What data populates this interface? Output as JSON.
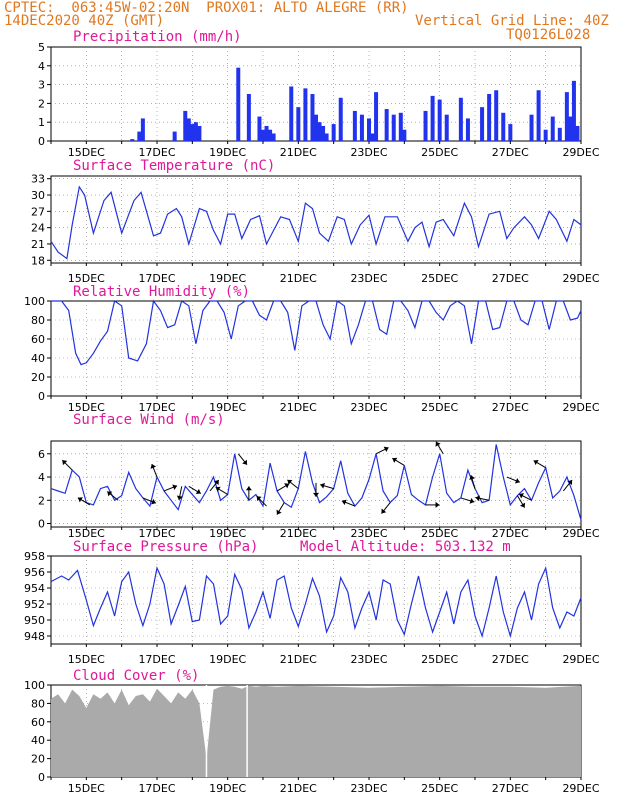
{
  "header": {
    "line1_left": "CPTEC:  063:45W-02:20N  PROX01: ALTO ALEGRE (RR)",
    "line2_left": "14DEC2020 40Z (GMT)",
    "line2_right": "Vertical Grid Line: 40Z",
    "line3_right": "TQ0126L028"
  },
  "x_tick_labels": [
    "15DEC",
    "17DEC",
    "19DEC",
    "21DEC",
    "23DEC",
    "25DEC",
    "27DEC",
    "29DEC"
  ],
  "colors": {
    "line": "#2233dd",
    "bar": "#2233ee",
    "cloud": "#aaaaaa",
    "title": "#e0189a",
    "header": "#e07820"
  },
  "chart_data": [
    {
      "type": "bar",
      "title": "Precipitation (mm/h)",
      "ylim": [
        0,
        5
      ],
      "y_ticks": [
        "0",
        "1",
        "2",
        "3",
        "4",
        "5"
      ],
      "x_units": "day (0 = 14DEC 00Z)",
      "x": [
        2.3,
        2.5,
        2.6,
        3.5,
        3.8,
        3.9,
        4.0,
        4.1,
        4.2,
        5.3,
        5.6,
        5.9,
        6.0,
        6.1,
        6.2,
        6.3,
        6.8,
        7.0,
        7.2,
        7.4,
        7.5,
        7.6,
        7.7,
        7.8,
        8.0,
        8.2,
        8.6,
        8.8,
        9.0,
        9.1,
        9.2,
        9.5,
        9.7,
        9.9,
        10.0,
        10.6,
        10.8,
        11.0,
        11.2,
        11.6,
        11.8,
        12.2,
        12.4,
        12.6,
        12.8,
        13.0,
        13.6,
        13.8,
        14.0,
        14.2,
        14.4,
        14.6,
        14.7,
        14.8,
        14.9
      ],
      "values": [
        0.1,
        0.5,
        1.2,
        0.5,
        1.6,
        1.2,
        0.9,
        1.0,
        0.8,
        3.9,
        2.5,
        1.3,
        0.6,
        0.8,
        0.6,
        0.4,
        2.9,
        1.8,
        2.8,
        2.5,
        1.4,
        1.0,
        0.8,
        0.4,
        0.9,
        2.3,
        1.6,
        1.4,
        1.2,
        0.4,
        2.6,
        1.7,
        1.4,
        1.5,
        0.6,
        1.6,
        2.4,
        2.2,
        1.4,
        2.3,
        1.2,
        1.8,
        2.5,
        2.7,
        1.5,
        0.9,
        1.4,
        2.7,
        0.6,
        1.3,
        0.7,
        2.6,
        1.3,
        3.2,
        0.8
      ]
    },
    {
      "type": "line",
      "title": "Surface Temperature (nC)",
      "ylim": [
        17.5,
        33.5
      ],
      "y_ticks": [
        "18",
        "21",
        "24",
        "27",
        "30",
        "33"
      ],
      "x_units": "day (0 = 14DEC 00Z)",
      "x": [
        0.0,
        0.2,
        0.45,
        0.6,
        0.8,
        0.95,
        1.2,
        1.5,
        1.7,
        2.0,
        2.35,
        2.55,
        2.9,
        3.1,
        3.3,
        3.55,
        3.7,
        3.9,
        4.2,
        4.4,
        4.6,
        4.8,
        5.0,
        5.2,
        5.4,
        5.65,
        5.9,
        6.1,
        6.3,
        6.5,
        6.75,
        7.0,
        7.2,
        7.4,
        7.6,
        7.85,
        8.1,
        8.3,
        8.5,
        8.75,
        9.0,
        9.2,
        9.45,
        9.8,
        10.1,
        10.3,
        10.5,
        10.7,
        10.9,
        11.1,
        11.4,
        11.7,
        11.9,
        12.1,
        12.4,
        12.7,
        12.9,
        13.1,
        13.4,
        13.6,
        13.8,
        14.1,
        14.3,
        14.6,
        14.8,
        15.0
      ],
      "values": [
        21.5,
        19.5,
        18.3,
        24.5,
        31.5,
        30.0,
        23.0,
        29.0,
        30.5,
        23.0,
        29.0,
        30.5,
        22.5,
        23.0,
        26.5,
        27.5,
        26.0,
        21.0,
        27.5,
        27.0,
        23.5,
        21.0,
        26.5,
        26.5,
        22.0,
        25.5,
        26.2,
        21.0,
        23.5,
        26.0,
        25.5,
        21.5,
        28.5,
        27.5,
        23.0,
        21.5,
        26.0,
        25.5,
        21.0,
        24.5,
        26.3,
        21.0,
        26.0,
        26.0,
        21.5,
        24.0,
        25.0,
        20.5,
        25.0,
        25.5,
        22.5,
        28.5,
        26.0,
        20.5,
        26.5,
        27.0,
        22.0,
        24.0,
        26.0,
        24.5,
        22.0,
        27.0,
        25.5,
        21.5,
        25.5,
        24.5
      ]
    },
    {
      "type": "line",
      "title": "Relative Humidity (%)",
      "ylim": [
        0,
        100
      ],
      "y_ticks": [
        "0",
        "20",
        "40",
        "60",
        "80",
        "100"
      ],
      "x_units": "day (0 = 14DEC 00Z)",
      "x": [
        0.0,
        0.3,
        0.5,
        0.7,
        0.85,
        1.0,
        1.2,
        1.4,
        1.6,
        1.8,
        2.0,
        2.2,
        2.45,
        2.7,
        2.9,
        3.1,
        3.3,
        3.5,
        3.7,
        3.9,
        4.1,
        4.3,
        4.5,
        4.7,
        4.9,
        5.1,
        5.3,
        5.5,
        5.7,
        5.9,
        6.1,
        6.3,
        6.5,
        6.7,
        6.9,
        7.1,
        7.3,
        7.5,
        7.7,
        7.9,
        8.1,
        8.3,
        8.5,
        8.7,
        8.9,
        9.1,
        9.3,
        9.5,
        9.7,
        9.9,
        10.1,
        10.3,
        10.5,
        10.7,
        10.9,
        11.1,
        11.3,
        11.5,
        11.7,
        11.9,
        12.1,
        12.3,
        12.5,
        12.7,
        12.9,
        13.1,
        13.3,
        13.5,
        13.7,
        13.9,
        14.1,
        14.3,
        14.5,
        14.7,
        14.9,
        15.0
      ],
      "values": [
        100,
        100,
        90,
        45,
        33,
        35,
        45,
        58,
        68,
        100,
        95,
        40,
        37,
        55,
        100,
        90,
        72,
        75,
        100,
        95,
        55,
        90,
        100,
        100,
        88,
        60,
        95,
        100,
        100,
        85,
        80,
        100,
        100,
        88,
        48,
        95,
        100,
        100,
        75,
        60,
        100,
        95,
        55,
        75,
        100,
        100,
        70,
        65,
        100,
        100,
        90,
        72,
        100,
        100,
        88,
        80,
        95,
        100,
        95,
        55,
        100,
        100,
        70,
        72,
        100,
        100,
        80,
        75,
        100,
        100,
        70,
        100,
        100,
        80,
        82,
        90
      ]
    },
    {
      "type": "line",
      "title": "Surface Wind (m/s)",
      "ylim": [
        -0.3,
        7.1
      ],
      "y_ticks": [
        "0",
        "2",
        "4",
        "6"
      ],
      "x_units": "day (0 = 14DEC 00Z)",
      "x": [
        0.0,
        0.2,
        0.4,
        0.6,
        0.8,
        1.0,
        1.2,
        1.4,
        1.6,
        1.8,
        2.0,
        2.2,
        2.4,
        2.6,
        2.8,
        3.0,
        3.2,
        3.4,
        3.6,
        3.8,
        4.0,
        4.2,
        4.4,
        4.6,
        4.8,
        5.0,
        5.2,
        5.4,
        5.6,
        5.8,
        6.0,
        6.2,
        6.4,
        6.6,
        6.8,
        7.0,
        7.2,
        7.4,
        7.6,
        7.8,
        8.0,
        8.2,
        8.4,
        8.6,
        8.8,
        9.0,
        9.2,
        9.4,
        9.6,
        9.8,
        10.0,
        10.2,
        10.4,
        10.6,
        10.8,
        11.0,
        11.2,
        11.4,
        11.6,
        11.8,
        12.0,
        12.2,
        12.4,
        12.6,
        12.8,
        13.0,
        13.2,
        13.4,
        13.6,
        13.8,
        14.0,
        14.2,
        14.4,
        14.6,
        14.8,
        15.0
      ],
      "values": [
        3.0,
        2.8,
        2.6,
        4.6,
        4.0,
        1.8,
        1.6,
        3.0,
        3.2,
        2.0,
        2.4,
        4.4,
        3.0,
        2.2,
        1.5,
        4.0,
        2.8,
        2.0,
        1.2,
        3.2,
        2.5,
        1.8,
        2.8,
        4.0,
        2.0,
        2.5,
        6.0,
        3.0,
        2.0,
        2.5,
        1.5,
        5.2,
        2.8,
        1.8,
        1.4,
        3.0,
        6.2,
        3.5,
        1.8,
        2.3,
        3.0,
        5.4,
        2.6,
        1.5,
        2.2,
        3.8,
        6.0,
        2.8,
        1.8,
        2.4,
        5.0,
        2.5,
        2.0,
        1.6,
        4.0,
        6.0,
        2.6,
        1.8,
        2.2,
        4.6,
        3.0,
        1.8,
        2.0,
        6.8,
        4.0,
        1.6,
        2.4,
        3.0,
        2.0,
        3.5,
        4.8,
        2.2,
        2.8,
        4.0,
        2.4,
        0.3
      ],
      "arrows": [
        {
          "x": 0.6,
          "dx": -1,
          "dy": -1
        },
        {
          "x": 1.1,
          "dx": -1,
          "dy": -0.6
        },
        {
          "x": 1.9,
          "dx": -1,
          "dy": -0.8
        },
        {
          "x": 2.6,
          "dx": 1,
          "dy": 0.4
        },
        {
          "x": 3.0,
          "dx": -0.4,
          "dy": -1
        },
        {
          "x": 3.2,
          "dx": 1,
          "dy": -0.4
        },
        {
          "x": 3.7,
          "dx": -0.2,
          "dy": 1
        },
        {
          "x": 3.9,
          "dx": 1,
          "dy": 0.6
        },
        {
          "x": 4.5,
          "dx": 0.8,
          "dy": -1
        },
        {
          "x": 5.0,
          "dx": -1,
          "dy": -0.6
        },
        {
          "x": 5.3,
          "dx": 0.8,
          "dy": 1
        },
        {
          "x": 5.6,
          "dx": 0,
          "dy": -1
        },
        {
          "x": 6.1,
          "dx": -1,
          "dy": -1
        },
        {
          "x": 6.4,
          "dx": 1,
          "dy": -0.6
        },
        {
          "x": 6.6,
          "dx": -0.6,
          "dy": 1
        },
        {
          "x": 7.0,
          "dx": -1,
          "dy": -0.8
        },
        {
          "x": 7.5,
          "dx": 0,
          "dy": 1
        },
        {
          "x": 8.0,
          "dx": -1,
          "dy": -0.3
        },
        {
          "x": 8.6,
          "dx": -1,
          "dy": -0.4
        },
        {
          "x": 9.2,
          "dx": 1,
          "dy": -0.5
        },
        {
          "x": 9.6,
          "dx": -0.8,
          "dy": 1
        },
        {
          "x": 10.0,
          "dx": -1,
          "dy": -0.6
        },
        {
          "x": 10.6,
          "dx": 1,
          "dy": 0
        },
        {
          "x": 11.1,
          "dx": -0.6,
          "dy": -1
        },
        {
          "x": 11.6,
          "dx": 1,
          "dy": 0.3
        },
        {
          "x": 12.0,
          "dx": -0.3,
          "dy": -1
        },
        {
          "x": 12.4,
          "dx": -1,
          "dy": -0.2
        },
        {
          "x": 12.9,
          "dx": 1,
          "dy": 0.4
        },
        {
          "x": 13.2,
          "dx": 0.6,
          "dy": 1
        },
        {
          "x": 13.6,
          "dx": -1,
          "dy": -0.5
        },
        {
          "x": 14.0,
          "dx": -1,
          "dy": -0.6
        },
        {
          "x": 14.5,
          "dx": 0.8,
          "dy": -1
        }
      ]
    },
    {
      "type": "line",
      "title": "Surface Pressure (hPa)",
      "subtitle": "Model Altitude: 503.132 m",
      "ylim": [
        947,
        958
      ],
      "y_ticks": [
        "948",
        "950",
        "952",
        "954",
        "956",
        "958"
      ],
      "x_units": "day (0 = 14DEC 00Z)",
      "x": [
        0.0,
        0.3,
        0.5,
        0.75,
        1.0,
        1.2,
        1.4,
        1.6,
        1.8,
        2.0,
        2.2,
        2.4,
        2.6,
        2.8,
        3.0,
        3.2,
        3.4,
        3.6,
        3.8,
        4.0,
        4.2,
        4.4,
        4.6,
        4.8,
        5.0,
        5.2,
        5.4,
        5.6,
        5.8,
        6.0,
        6.2,
        6.4,
        6.6,
        6.8,
        7.0,
        7.2,
        7.4,
        7.6,
        7.8,
        8.0,
        8.2,
        8.4,
        8.6,
        8.8,
        9.0,
        9.2,
        9.4,
        9.6,
        9.8,
        10.0,
        10.2,
        10.4,
        10.6,
        10.8,
        11.0,
        11.2,
        11.4,
        11.6,
        11.8,
        12.0,
        12.2,
        12.4,
        12.6,
        12.8,
        13.0,
        13.2,
        13.4,
        13.6,
        13.8,
        14.0,
        14.2,
        14.4,
        14.6,
        14.8,
        15.0
      ],
      "values": [
        954.8,
        955.5,
        955.0,
        956.2,
        952.5,
        949.3,
        951.5,
        953.5,
        950.5,
        954.8,
        956.0,
        952.0,
        949.3,
        952.0,
        956.5,
        954.5,
        949.5,
        951.8,
        954.2,
        949.8,
        950.0,
        955.5,
        954.5,
        949.5,
        950.5,
        955.7,
        953.8,
        949.0,
        951.0,
        953.5,
        950.2,
        955.0,
        955.5,
        951.5,
        949.2,
        952.0,
        955.2,
        953.0,
        948.5,
        950.5,
        955.3,
        953.5,
        949.0,
        951.5,
        953.5,
        950.0,
        955.0,
        954.5,
        950.0,
        948.2,
        952.0,
        955.5,
        951.5,
        948.5,
        951.0,
        953.5,
        949.5,
        953.5,
        955.0,
        950.5,
        948.0,
        951.5,
        955.5,
        951.0,
        948.0,
        951.5,
        953.5,
        950.0,
        954.5,
        956.5,
        951.5,
        949.0,
        951.0,
        950.5,
        952.8
      ]
    },
    {
      "type": "area",
      "title": "Cloud Cover (%)",
      "ylim": [
        0,
        100
      ],
      "y_ticks": [
        "0",
        "20",
        "40",
        "60",
        "80",
        "100"
      ],
      "x_units": "day (0 = 14DEC 00Z)",
      "x": [
        0.0,
        0.2,
        0.4,
        0.6,
        0.8,
        1.0,
        1.2,
        1.4,
        1.6,
        1.8,
        2.0,
        2.2,
        2.4,
        2.6,
        2.8,
        3.0,
        3.2,
        3.4,
        3.6,
        3.8,
        4.0,
        4.2,
        4.4,
        4.6,
        4.8,
        5.0,
        5.2,
        5.4,
        5.6,
        5.8,
        6.0,
        6.4,
        7.0,
        8.0,
        9.0,
        10.0,
        11.0,
        12.0,
        13.0,
        14.0,
        14.5,
        15.0
      ],
      "values": [
        85,
        90,
        80,
        95,
        88,
        75,
        90,
        85,
        92,
        80,
        95,
        78,
        88,
        90,
        82,
        96,
        88,
        80,
        92,
        85,
        95,
        80,
        20,
        95,
        98,
        99,
        98,
        96,
        99,
        98,
        99,
        98,
        99,
        98,
        97,
        98,
        99,
        98,
        98,
        97,
        98,
        99
      ],
      "gaps": [
        4.4,
        5.55
      ]
    }
  ]
}
